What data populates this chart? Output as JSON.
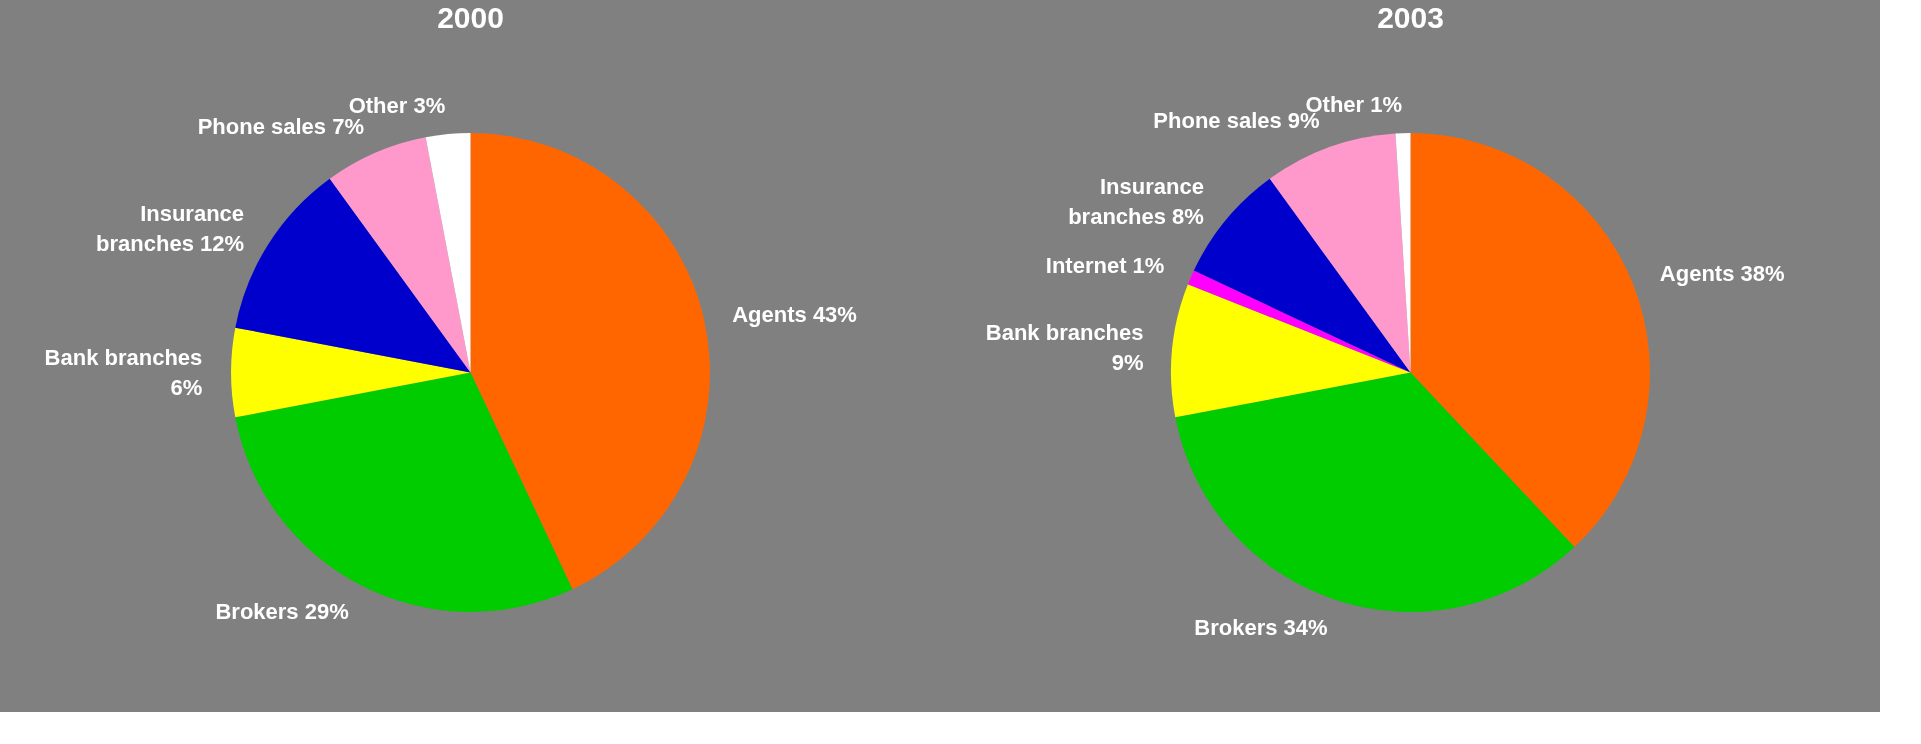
{
  "chart_data": [
    {
      "type": "pie",
      "title": "2000",
      "categories": [
        "Agents",
        "Brokers",
        "Bank branches",
        "Insurance branches",
        "Phone sales",
        "Other"
      ],
      "values": [
        43,
        29,
        6,
        12,
        7,
        3
      ],
      "value_labels": [
        "43%",
        "29%",
        "6%",
        "12%",
        "7%",
        "3%"
      ],
      "colors": [
        "#ff6600",
        "#00cc00",
        "#ffff00",
        "#0000cc",
        "#ff99cc",
        "#ffffff"
      ]
    },
    {
      "type": "pie",
      "title": "2003",
      "categories": [
        "Agents",
        "Brokers",
        "Bank branches",
        "Internet",
        "Insurance branches",
        "Phone sales",
        "Other"
      ],
      "values": [
        38,
        34,
        9,
        1,
        8,
        9,
        1
      ],
      "value_labels": [
        "38%",
        "34%",
        "9%",
        "1%",
        "8%",
        "9%",
        "1%"
      ],
      "colors": [
        "#ff6600",
        "#00cc00",
        "#ffff00",
        "#ff00ff",
        "#0000cc",
        "#ff99cc",
        "#ffffff"
      ]
    }
  ]
}
